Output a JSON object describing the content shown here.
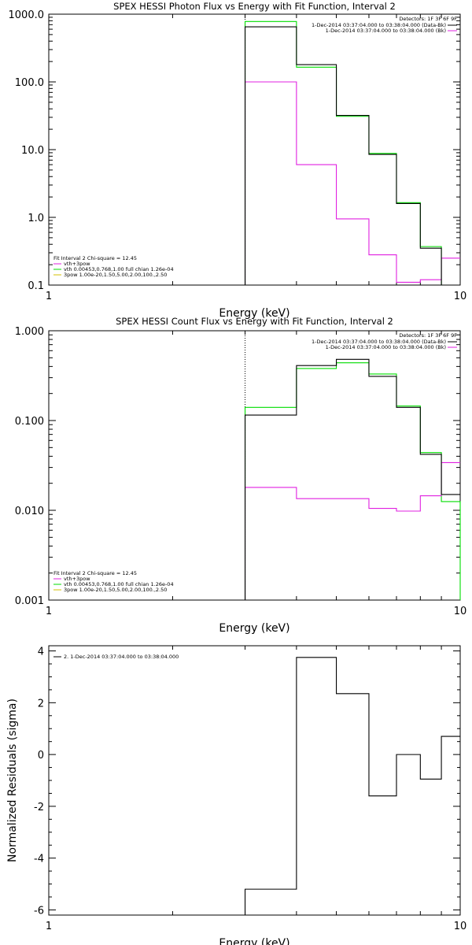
{
  "colors": {
    "black": "#000000",
    "magenta": "#e020e0",
    "green": "#00dd00",
    "yellow": "#d4c000"
  },
  "chart_data": [
    {
      "type": "line",
      "title": "SPEX HESSI Photon Flux vs Energy with Fit Function, Interval 2",
      "xlabel": "Energy (keV)",
      "ylabel": "",
      "xscale": "log",
      "yscale": "log",
      "xlim": [
        1,
        10
      ],
      "ylim": [
        0.1,
        1000
      ],
      "x_ticks": [
        "1",
        "10"
      ],
      "y_ticks": [
        {
          "v": 0.1,
          "label": "0.1"
        },
        {
          "v": 1,
          "label": "1.0"
        },
        {
          "v": 10,
          "label": "10.0"
        },
        {
          "v": 100,
          "label": "100.0"
        },
        {
          "v": 1000,
          "label": "1000.0"
        }
      ],
      "fit_start": 3,
      "bin_edges": [
        3,
        4,
        5,
        6,
        7,
        8,
        9,
        10
      ],
      "series": [
        {
          "role": "data",
          "color": "black",
          "values": [
            650,
            180,
            32,
            8.5,
            1.6,
            0.35,
            0.1
          ]
        },
        {
          "role": "background",
          "color": "magenta",
          "values": [
            100,
            6,
            0.95,
            0.28,
            0.11,
            0.12,
            0.25
          ]
        },
        {
          "role": "fit",
          "color": "green",
          "values": [
            780,
            165,
            31,
            8.8,
            1.65,
            0.37,
            0.1
          ]
        }
      ],
      "legend_right": {
        "detectors": "Detectors: 1F 3F 6F 9F",
        "entries": [
          {
            "text": "1-Dec-2014 03:37:04.000 to 03:38:04.000 (Data-Bk)",
            "color": "black"
          },
          {
            "text": "1-Dec-2014 03:37:04.000 to 03:38:04.000 (Bk)",
            "color": "magenta"
          }
        ]
      },
      "legend_left": {
        "header": "Fit Interval 2   Chi-square = 12.45",
        "entries": [
          {
            "text": "vth+3pow",
            "color": "magenta"
          },
          {
            "text": "vth 0.00453,0.768,1.00   full chian 1.26e-04",
            "color": "green"
          },
          {
            "text": "3pow 1.00e-20,1.50,5.00,2.00,100.,2.50",
            "color": "yellow"
          }
        ]
      }
    },
    {
      "type": "line",
      "title": "SPEX HESSI Count Flux vs Energy with Fit Function, Interval 2",
      "xlabel": "Energy (keV)",
      "ylabel": "",
      "xscale": "log",
      "yscale": "log",
      "xlim": [
        1,
        10
      ],
      "ylim": [
        0.001,
        1
      ],
      "x_ticks": [
        "1",
        "10"
      ],
      "y_ticks": [
        {
          "v": 0.001,
          "label": "0.001"
        },
        {
          "v": 0.01,
          "label": "0.010"
        },
        {
          "v": 0.1,
          "label": "0.100"
        },
        {
          "v": 1,
          "label": "1.000"
        }
      ],
      "fit_start": 3,
      "bin_edges": [
        3,
        4,
        5,
        6,
        7,
        8,
        9,
        10
      ],
      "series": [
        {
          "role": "data",
          "color": "black",
          "values": [
            0.115,
            0.41,
            0.48,
            0.31,
            0.14,
            0.042,
            0.015
          ]
        },
        {
          "role": "background",
          "color": "magenta",
          "values": [
            0.018,
            0.0135,
            0.0135,
            0.0105,
            0.0098,
            0.0145,
            0.034
          ]
        },
        {
          "role": "fit",
          "color": "green",
          "values": [
            0.14,
            0.38,
            0.44,
            0.33,
            0.145,
            0.044,
            0.0125
          ]
        }
      ],
      "legend_right": {
        "detectors": "Detectors: 1F 3F 6F 9F",
        "entries": [
          {
            "text": "1-Dec-2014 03:37:04.000 to 03:38:04.000 (Data-Bk)",
            "color": "black"
          },
          {
            "text": "1-Dec-2014 03:37:04.000 to 03:38:04.000 (Bk)",
            "color": "magenta"
          }
        ]
      },
      "legend_left": {
        "header": "Fit Interval 2   Chi-square = 12.45",
        "entries": [
          {
            "text": "vth+3pow",
            "color": "magenta"
          },
          {
            "text": "vth 0.00453,0.768,1.00   full chian 1.26e-04",
            "color": "green"
          },
          {
            "text": "3pow 1.00e-20,1.50,5.00,2.00,100.,2.50",
            "color": "yellow"
          }
        ]
      }
    },
    {
      "type": "line",
      "title": "",
      "xlabel": "Energy (keV)",
      "ylabel": "Normalized Residuals (sigma)",
      "xscale": "log",
      "yscale": "linear",
      "xlim": [
        1,
        10
      ],
      "ylim": [
        -6.2,
        4.2
      ],
      "x_ticks": [
        "1",
        "10"
      ],
      "y_ticks": [
        {
          "v": -6,
          "label": "-6"
        },
        {
          "v": -4,
          "label": "-4"
        },
        {
          "v": -2,
          "label": "-2"
        },
        {
          "v": 0,
          "label": "0"
        },
        {
          "v": 2,
          "label": "2"
        },
        {
          "v": 4,
          "label": "4"
        }
      ],
      "bin_edges": [
        3,
        4,
        5,
        6,
        7,
        8,
        9,
        10
      ],
      "series": [
        {
          "role": "residuals",
          "color": "black",
          "values": [
            -5.2,
            3.75,
            2.35,
            -1.6,
            0.0,
            -0.95,
            0.7
          ]
        }
      ],
      "legend_left": {
        "entries": [
          {
            "text": "2.  1-Dec-2014 03:37:04.000 to 03:38:04.000",
            "color": "black"
          }
        ]
      }
    }
  ]
}
